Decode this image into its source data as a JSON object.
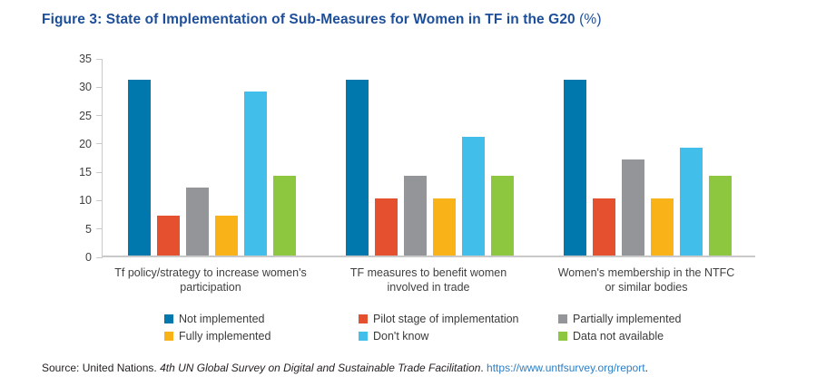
{
  "title": {
    "main": "Figure 3: State of Implementation of Sub-Measures for Women in TF in the G20",
    "suffix": " (%)"
  },
  "colors": {
    "title_text": "#1c4e9a",
    "axis_line": "#c9c9c9",
    "axis_text": "#3f3f3f",
    "link": "#2e7ec5"
  },
  "chart_data": {
    "type": "bar",
    "title": "Figure 3: State of Implementation of Sub-Measures for Women in TF in the G20 (%)",
    "categories": [
      "Tf policy/strategy to increase women's participation",
      "TF measures to benefit women involved in trade",
      "Women's membership in the NTFC or similar bodies"
    ],
    "category_lines": [
      [
        "Tf policy/strategy to increase women's",
        "participation"
      ],
      [
        "TF measures to benefit women",
        "involved in trade"
      ],
      [
        "Women's membership in the NTFC",
        "or similar bodies"
      ]
    ],
    "series": [
      {
        "name": "Not implemented",
        "color": "#0078ae",
        "values": [
          31,
          31,
          31
        ]
      },
      {
        "name": "Pilot stage of implementation",
        "color": "#e5502e",
        "values": [
          7,
          10,
          10
        ]
      },
      {
        "name": "Partially implemented",
        "color": "#939598",
        "values": [
          12,
          14,
          17
        ]
      },
      {
        "name": "Fully implemented",
        "color": "#f9b318",
        "values": [
          7,
          10,
          10
        ]
      },
      {
        "name": "Don't know",
        "color": "#41bee9",
        "values": [
          29,
          21,
          19
        ]
      },
      {
        "name": "Data not available",
        "color": "#8dc63f",
        "values": [
          14,
          14,
          14
        ]
      }
    ],
    "xlabel": "",
    "ylabel": "",
    "ylim": [
      0,
      35
    ],
    "ytick_step": 5,
    "grid": false,
    "legend_position": "bottom"
  },
  "source": {
    "prefix": "Source: United Nations. ",
    "italic": "4th UN Global Survey on Digital and Sustainable Trade Facilitation",
    "sep": ". ",
    "link": "https://www.untfsurvey.org/report",
    "suffix": "."
  }
}
